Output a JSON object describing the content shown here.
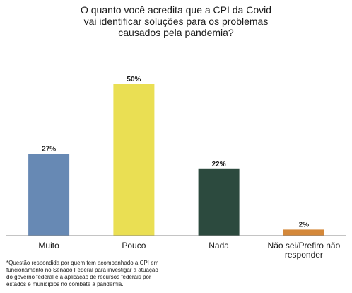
{
  "chart_data": {
    "type": "bar",
    "title_lines": [
      "O quanto você acredita que a CPI da Covid",
      "vai identificar soluções para os problemas",
      "causados pela pandemia?"
    ],
    "categories": [
      "Muito",
      "Pouco",
      "Nada",
      "Não sei/Prefiro não responder"
    ],
    "category_label_lines": [
      [
        "Muito"
      ],
      [
        "Pouco"
      ],
      [
        "Nada"
      ],
      [
        "Não sei/Prefiro não",
        "responder"
      ]
    ],
    "values": [
      27,
      50,
      22,
      2
    ],
    "value_labels": [
      "27%",
      "50%",
      "22%",
      "2%"
    ],
    "colors": [
      "#6789b4",
      "#eadf53",
      "#2c4a3e",
      "#d4883a"
    ],
    "ylim": [
      0,
      50
    ],
    "grid": false,
    "xlabel": "",
    "ylabel": ""
  },
  "footnote_lines": [
    "*Questão respondida por quem tem acompanhado a CPI em",
    "funcionamento no Senado Federal para investigar a atuação",
    "do governo federal e a aplicação de recursos federais por",
    "estados e municípios no combate à pandemia."
  ]
}
